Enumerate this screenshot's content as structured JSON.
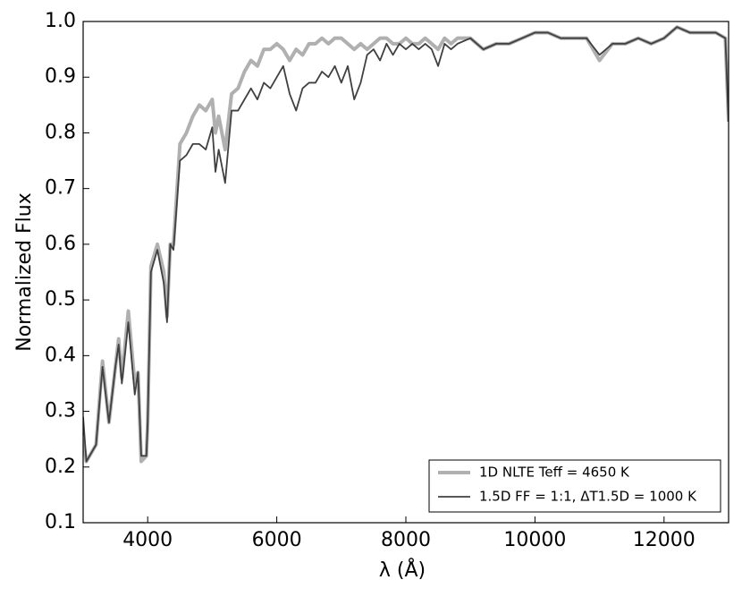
{
  "chart_data": {
    "type": "line",
    "xlabel": "λ (Å)",
    "ylabel": "Normalized Flux",
    "x": [
      3000,
      3050,
      3100,
      3200,
      3300,
      3400,
      3500,
      3550,
      3600,
      3700,
      3800,
      3850,
      3900,
      3980,
      4000,
      4050,
      4150,
      4250,
      4300,
      4350,
      4400,
      4500,
      4600,
      4700,
      4800,
      4900,
      5000,
      5050,
      5100,
      5200,
      5300,
      5400,
      5500,
      5600,
      5700,
      5800,
      5900,
      6000,
      6100,
      6200,
      6300,
      6400,
      6500,
      6600,
      6700,
      6800,
      6900,
      7000,
      7100,
      7200,
      7300,
      7400,
      7500,
      7600,
      7700,
      7800,
      7900,
      8000,
      8100,
      8200,
      8300,
      8400,
      8500,
      8600,
      8700,
      8800,
      9000,
      9200,
      9400,
      9600,
      9800,
      10000,
      10200,
      10400,
      10600,
      10800,
      11000,
      11200,
      11400,
      11600,
      11800,
      12000,
      12200,
      12400,
      12600,
      12800,
      12950,
      13000
    ],
    "series": [
      {
        "name": "1D NLTE Teff = 4650 K",
        "color": "#b0b0b0",
        "values": [
          0.25,
          0.21,
          0.22,
          0.24,
          0.39,
          0.28,
          0.38,
          0.43,
          0.36,
          0.48,
          0.35,
          0.37,
          0.21,
          0.22,
          0.28,
          0.56,
          0.6,
          0.55,
          0.47,
          0.6,
          0.6,
          0.78,
          0.8,
          0.83,
          0.85,
          0.84,
          0.86,
          0.8,
          0.83,
          0.77,
          0.87,
          0.88,
          0.91,
          0.93,
          0.92,
          0.95,
          0.95,
          0.96,
          0.95,
          0.93,
          0.95,
          0.94,
          0.96,
          0.96,
          0.97,
          0.96,
          0.97,
          0.97,
          0.96,
          0.95,
          0.96,
          0.95,
          0.96,
          0.97,
          0.97,
          0.96,
          0.96,
          0.97,
          0.96,
          0.96,
          0.97,
          0.96,
          0.95,
          0.97,
          0.96,
          0.97,
          0.97,
          0.95,
          0.96,
          0.96,
          0.97,
          0.98,
          0.98,
          0.97,
          0.97,
          0.97,
          0.93,
          0.96,
          0.96,
          0.97,
          0.96,
          0.97,
          0.99,
          0.98,
          0.98,
          0.98,
          0.97,
          0.82
        ]
      },
      {
        "name": "1.5D FF = 1:1, ΔT1.5D = 1000 K",
        "color": "#404040",
        "values": [
          0.29,
          0.21,
          0.22,
          0.24,
          0.38,
          0.28,
          0.38,
          0.42,
          0.35,
          0.46,
          0.33,
          0.37,
          0.22,
          0.22,
          0.28,
          0.55,
          0.59,
          0.53,
          0.46,
          0.6,
          0.59,
          0.75,
          0.76,
          0.78,
          0.78,
          0.77,
          0.81,
          0.73,
          0.77,
          0.71,
          0.84,
          0.84,
          0.86,
          0.88,
          0.86,
          0.89,
          0.88,
          0.9,
          0.92,
          0.87,
          0.84,
          0.88,
          0.89,
          0.89,
          0.91,
          0.9,
          0.92,
          0.89,
          0.92,
          0.86,
          0.89,
          0.94,
          0.95,
          0.93,
          0.96,
          0.94,
          0.96,
          0.95,
          0.96,
          0.95,
          0.96,
          0.95,
          0.92,
          0.96,
          0.95,
          0.96,
          0.97,
          0.95,
          0.96,
          0.96,
          0.97,
          0.98,
          0.98,
          0.97,
          0.97,
          0.97,
          0.94,
          0.96,
          0.96,
          0.97,
          0.96,
          0.97,
          0.99,
          0.98,
          0.98,
          0.98,
          0.97,
          0.82
        ]
      }
    ],
    "xlim": [
      3000,
      13000
    ],
    "xticks": [
      4000,
      6000,
      8000,
      10000,
      12000
    ],
    "ylim": [
      0.1,
      1
    ],
    "yticks": [
      0.1,
      0.2,
      0.3,
      0.4,
      0.5,
      0.6,
      0.7,
      0.8,
      0.9,
      {
        "value": 1,
        "label": "1.0"
      }
    ],
    "legend": "lower right"
  }
}
